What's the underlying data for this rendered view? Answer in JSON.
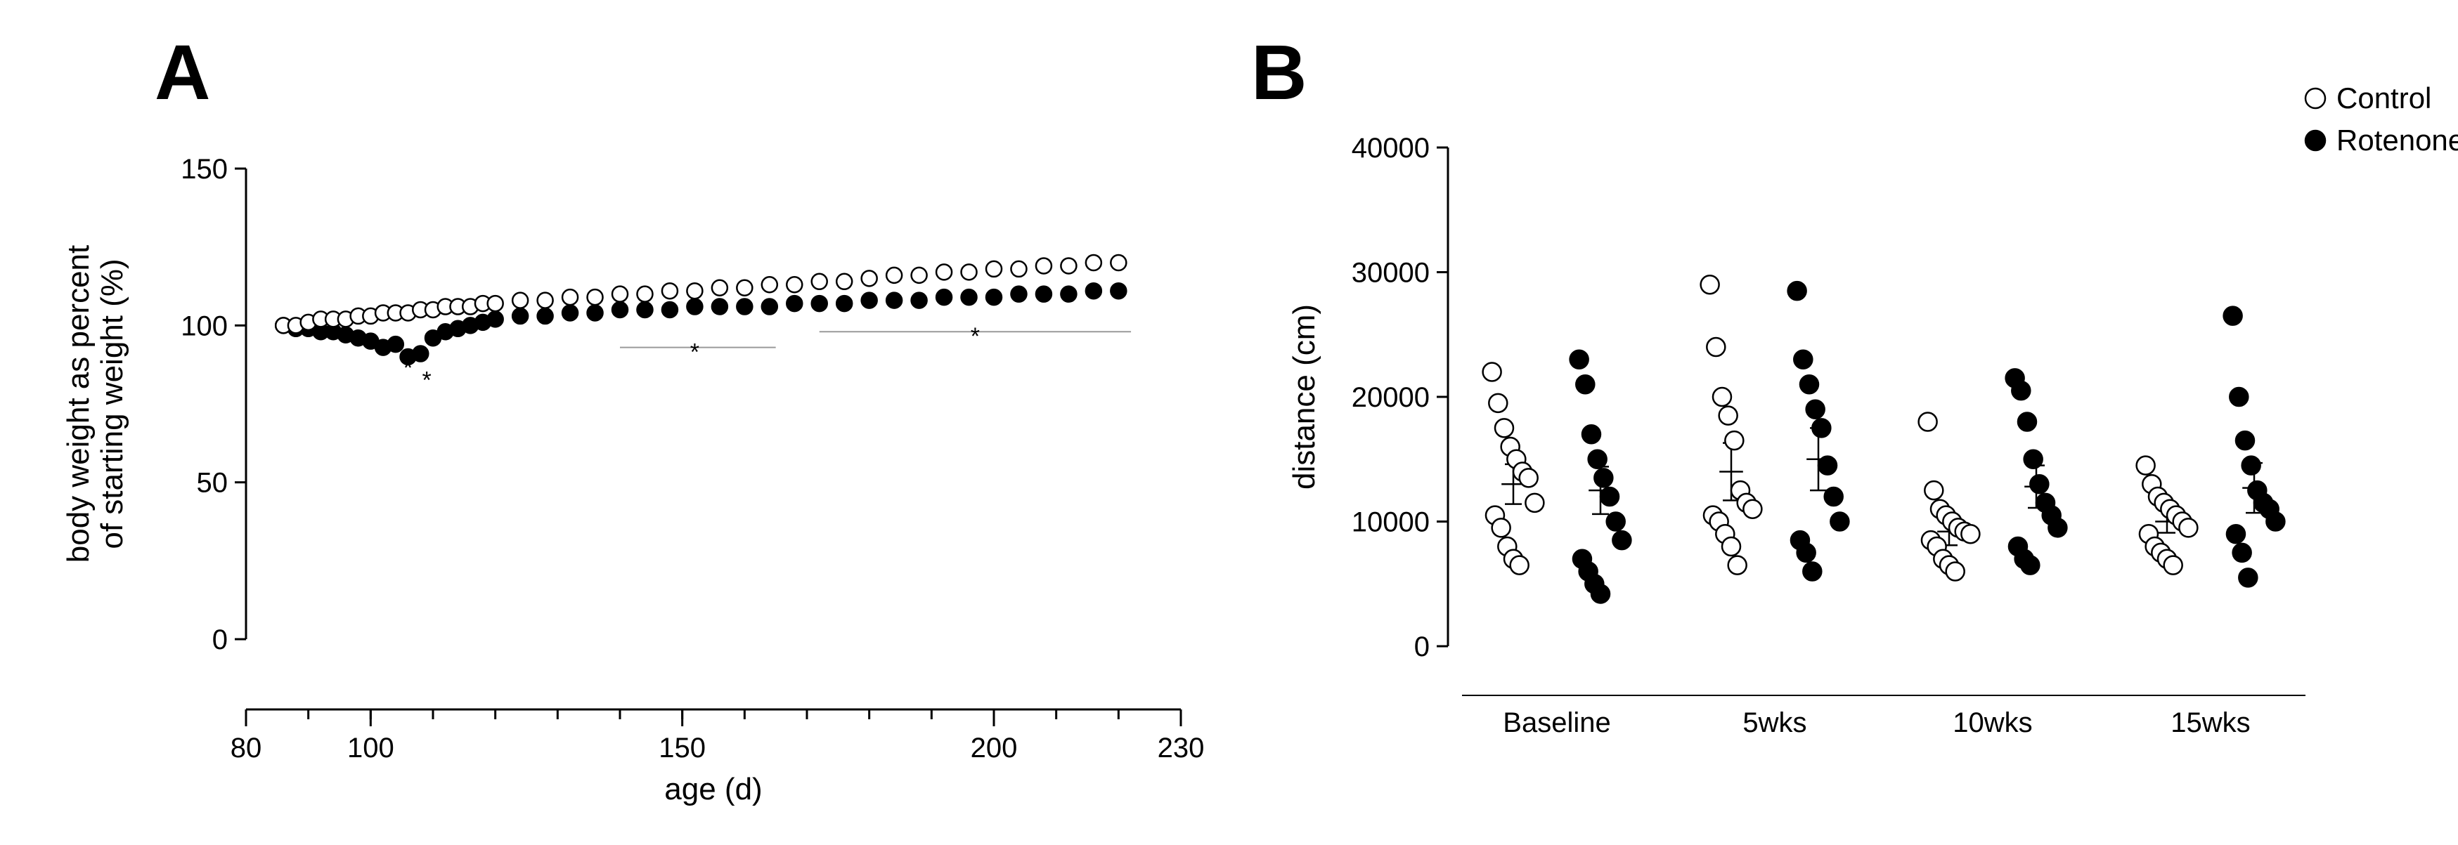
{
  "legend": {
    "items": [
      {
        "label": "Control",
        "fill": "#ffffff",
        "stroke": "#000000"
      },
      {
        "label": "Rotenone",
        "fill": "#000000",
        "stroke": "#000000"
      }
    ],
    "fontsize": 42,
    "marker_r": 14
  },
  "panelA": {
    "label": "A",
    "label_fontsize": 110,
    "type": "scatter-line",
    "xlabel": "age (d)",
    "ylabel": "body weight as percent\nof starting weight (%)",
    "label_fontsize_axis": 44,
    "tick_fontsize": 40,
    "xlim": [
      80,
      230
    ],
    "ylim": [
      0,
      150
    ],
    "xticks": [
      80,
      100,
      150,
      200,
      230
    ],
    "yticks": [
      0,
      50,
      100,
      150
    ],
    "x_minor_step": 10,
    "marker_r": 11,
    "marker_stroke": "#000000",
    "marker_stroke_w": 2.5,
    "axis_color": "#000000",
    "axis_w": 3,
    "series": {
      "control": {
        "fill": "#ffffff",
        "points": [
          [
            86,
            100
          ],
          [
            88,
            100
          ],
          [
            90,
            101
          ],
          [
            92,
            102
          ],
          [
            94,
            102
          ],
          [
            96,
            102
          ],
          [
            98,
            103
          ],
          [
            100,
            103
          ],
          [
            102,
            104
          ],
          [
            104,
            104
          ],
          [
            106,
            104
          ],
          [
            108,
            105
          ],
          [
            110,
            105
          ],
          [
            112,
            106
          ],
          [
            114,
            106
          ],
          [
            116,
            106
          ],
          [
            118,
            107
          ],
          [
            120,
            107
          ],
          [
            124,
            108
          ],
          [
            128,
            108
          ],
          [
            132,
            109
          ],
          [
            136,
            109
          ],
          [
            140,
            110
          ],
          [
            144,
            110
          ],
          [
            148,
            111
          ],
          [
            152,
            111
          ],
          [
            156,
            112
          ],
          [
            160,
            112
          ],
          [
            164,
            113
          ],
          [
            168,
            113
          ],
          [
            172,
            114
          ],
          [
            176,
            114
          ],
          [
            180,
            115
          ],
          [
            184,
            116
          ],
          [
            188,
            116
          ],
          [
            192,
            117
          ],
          [
            196,
            117
          ],
          [
            200,
            118
          ],
          [
            204,
            118
          ],
          [
            208,
            119
          ],
          [
            212,
            119
          ],
          [
            216,
            120
          ],
          [
            220,
            120
          ]
        ]
      },
      "rotenone": {
        "fill": "#000000",
        "points": [
          [
            86,
            100
          ],
          [
            88,
            99
          ],
          [
            90,
            99
          ],
          [
            92,
            98
          ],
          [
            94,
            98
          ],
          [
            96,
            97
          ],
          [
            98,
            96
          ],
          [
            100,
            95
          ],
          [
            102,
            93
          ],
          [
            104,
            94
          ],
          [
            106,
            90
          ],
          [
            108,
            91
          ],
          [
            110,
            96
          ],
          [
            112,
            98
          ],
          [
            114,
            99
          ],
          [
            116,
            100
          ],
          [
            118,
            101
          ],
          [
            120,
            102
          ],
          [
            124,
            103
          ],
          [
            128,
            103
          ],
          [
            132,
            104
          ],
          [
            136,
            104
          ],
          [
            140,
            105
          ],
          [
            144,
            105
          ],
          [
            148,
            105
          ],
          [
            152,
            106
          ],
          [
            156,
            106
          ],
          [
            160,
            106
          ],
          [
            164,
            106
          ],
          [
            168,
            107
          ],
          [
            172,
            107
          ],
          [
            176,
            107
          ],
          [
            180,
            108
          ],
          [
            184,
            108
          ],
          [
            188,
            108
          ],
          [
            192,
            109
          ],
          [
            196,
            109
          ],
          [
            200,
            109
          ],
          [
            204,
            110
          ],
          [
            208,
            110
          ],
          [
            212,
            110
          ],
          [
            216,
            111
          ],
          [
            220,
            111
          ]
        ]
      }
    },
    "sig_bars": {
      "color": "#9a9a9a",
      "width": 2,
      "star_color": "#000000",
      "star_fontsize": 34,
      "bars": [
        {
          "x1": 140,
          "x2": 165,
          "y": 93,
          "star_x": 152,
          "star_y": 89
        },
        {
          "x1": 172,
          "x2": 222,
          "y": 98,
          "star_x": 197,
          "star_y": 94
        }
      ],
      "loose_stars": [
        {
          "x": 106,
          "y": 84,
          "text": "*"
        },
        {
          "x": 109,
          "y": 80,
          "text": "*"
        }
      ]
    }
  },
  "panelB": {
    "label": "B",
    "label_fontsize": 110,
    "type": "strip-scatter",
    "ylabel": "distance (cm)",
    "label_fontsize_axis": 44,
    "tick_fontsize": 40,
    "ylim": [
      0,
      40000
    ],
    "yticks": [
      0,
      10000,
      20000,
      30000,
      40000
    ],
    "categories": [
      "Baseline",
      "5wks",
      "10wks",
      "15wks"
    ],
    "marker_r": 13,
    "marker_stroke": "#000000",
    "marker_stroke_w": 2.5,
    "axis_color": "#000000",
    "axis_w": 3,
    "err_cap": 12,
    "err_w": 2.5,
    "jitter": [
      -0.28,
      -0.2,
      -0.12,
      -0.04,
      0.04,
      0.12,
      0.2,
      0.28,
      -0.24,
      -0.16,
      -0.08,
      0.0,
      0.08,
      0.16
    ],
    "groups": [
      {
        "name": "Baseline",
        "control": {
          "mean": 13000,
          "sem": 1600,
          "pts": [
            22000,
            19500,
            17500,
            16000,
            15000,
            14000,
            13500,
            11500,
            10500,
            9500,
            8000,
            7000,
            6500
          ]
        },
        "rotenone": {
          "mean": 12500,
          "sem": 1900,
          "pts": [
            23000,
            21000,
            17000,
            15000,
            13500,
            12000,
            10000,
            8500,
            7000,
            6000,
            5000,
            4200
          ]
        }
      },
      {
        "name": "5wks",
        "control": {
          "mean": 14000,
          "sem": 2300,
          "pts": [
            29000,
            24000,
            20000,
            18500,
            16500,
            12500,
            11500,
            11000,
            10500,
            10000,
            9000,
            8000,
            6500
          ]
        },
        "rotenone": {
          "mean": 15000,
          "sem": 2500,
          "pts": [
            28500,
            23000,
            21000,
            19000,
            17500,
            14500,
            12000,
            10000,
            8500,
            7500,
            6000
          ]
        }
      },
      {
        "name": "10wks",
        "control": {
          "mean": 9200,
          "sem": 1100,
          "pts": [
            18000,
            12500,
            11000,
            10500,
            10000,
            9500,
            9200,
            9000,
            8500,
            8000,
            7000,
            6500,
            6000
          ]
        },
        "rotenone": {
          "mean": 12800,
          "sem": 1700,
          "pts": [
            21500,
            20500,
            18000,
            15000,
            13000,
            11500,
            10500,
            9500,
            8000,
            7000,
            6500
          ]
        }
      },
      {
        "name": "15wks",
        "control": {
          "mean": 10000,
          "sem": 900,
          "pts": [
            14500,
            13000,
            12000,
            11500,
            11000,
            10500,
            10000,
            9500,
            9000,
            8000,
            7500,
            7000,
            6500
          ]
        },
        "rotenone": {
          "mean": 12700,
          "sem": 2000,
          "pts": [
            26500,
            20000,
            16500,
            14500,
            12500,
            11500,
            11000,
            10000,
            9000,
            7500,
            5500
          ]
        }
      }
    ]
  }
}
